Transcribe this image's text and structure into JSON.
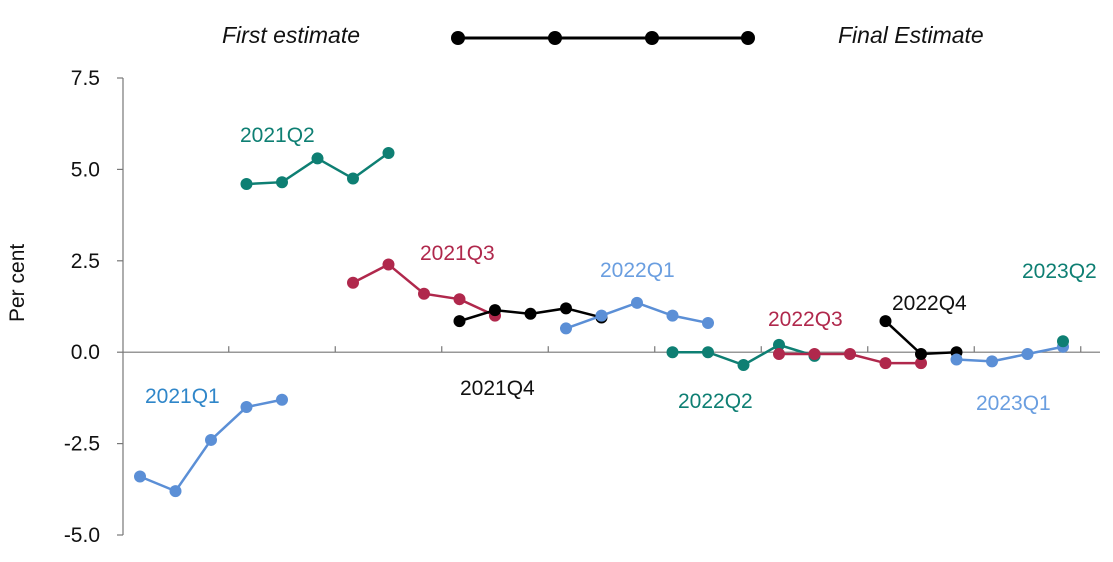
{
  "legend": {
    "first_label": "First estimate",
    "final_label": "Final Estimate",
    "marker_color": "#000000"
  },
  "chart_data": {
    "type": "line",
    "title": "",
    "xlabel": "",
    "ylabel": "Per cent",
    "ylim": [
      -5.0,
      7.5
    ],
    "yticks": [
      "7.5",
      "5.0",
      "2.5",
      "0.0",
      "-2.5",
      "-5.0"
    ],
    "yticks_values": [
      7.5,
      5.0,
      2.5,
      0.0,
      -2.5,
      -5.0
    ],
    "grid": false,
    "legend_position": "top",
    "series": [
      {
        "name": "2021Q1",
        "color": "#5b8fd6",
        "label_color": "#2f86c9",
        "start_index": 0,
        "values": [
          -3.4,
          -3.8,
          -2.4,
          -1.5,
          -1.3
        ]
      },
      {
        "name": "2021Q2",
        "color": "#0e7f73",
        "label_color": "#0e7f73",
        "start_index": 3,
        "values": [
          4.6,
          4.65,
          5.3,
          4.75,
          5.45
        ]
      },
      {
        "name": "2021Q3",
        "color": "#b0284c",
        "label_color": "#b0284c",
        "start_index": 6,
        "values": [
          1.9,
          2.4,
          1.6,
          1.45,
          1.0
        ]
      },
      {
        "name": "2021Q4",
        "color": "#000000",
        "label_color": "#111111",
        "start_index": 9,
        "values": [
          0.85,
          1.15,
          1.05,
          1.2,
          0.95
        ]
      },
      {
        "name": "2022Q1",
        "color": "#5b8fd6",
        "label_color": "#6a9ee0",
        "start_index": 12,
        "values": [
          0.65,
          1.0,
          1.35,
          1.0,
          0.8
        ]
      },
      {
        "name": "2022Q2",
        "color": "#0e7f73",
        "label_color": "#0e7f73",
        "start_index": 15,
        "values": [
          0.0,
          0.0,
          -0.35,
          0.2,
          -0.1
        ]
      },
      {
        "name": "2022Q3",
        "color": "#b0284c",
        "label_color": "#b0284c",
        "start_index": 18,
        "values": [
          -0.05,
          -0.05,
          -0.05,
          -0.3,
          -0.3
        ]
      },
      {
        "name": "2022Q4",
        "color": "#000000",
        "label_color": "#111111",
        "start_index": 21,
        "values": [
          0.85,
          -0.05,
          0.0
        ]
      },
      {
        "name": "2023Q1",
        "color": "#5b8fd6",
        "label_color": "#6a9ee0",
        "start_index": 23,
        "values": [
          -0.2,
          -0.25,
          -0.05,
          0.15
        ]
      },
      {
        "name": "2023Q2",
        "color": "#0e7f73",
        "label_color": "#0e7f73",
        "start_index": 26,
        "values": [
          0.3
        ]
      }
    ]
  }
}
